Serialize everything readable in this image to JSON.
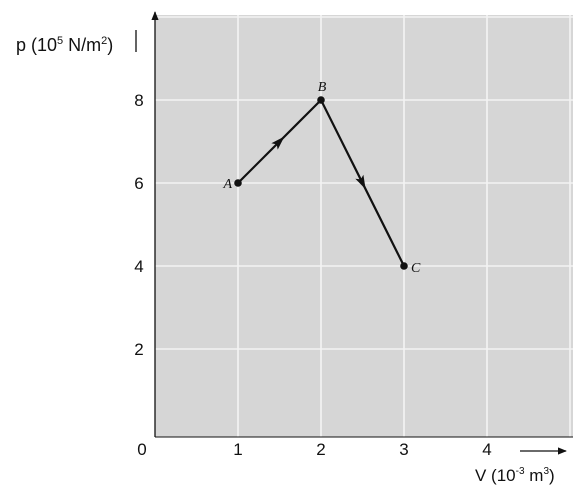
{
  "chart_data": {
    "type": "line",
    "ylabel_html": [
      "p (10",
      "5",
      " N/m",
      "2",
      ")"
    ],
    "xlabel_html": [
      "V (10",
      "-3",
      " m",
      "3",
      ")"
    ],
    "origin_label": "0",
    "xlim": [
      0,
      5
    ],
    "ylim": [
      0,
      10
    ],
    "x_ticks": [
      {
        "value": 1,
        "label": "1"
      },
      {
        "value": 2,
        "label": "2"
      },
      {
        "value": 3,
        "label": "3"
      },
      {
        "value": 4,
        "label": "4"
      }
    ],
    "y_ticks": [
      {
        "value": 2,
        "label": "2"
      },
      {
        "value": 4,
        "label": "4"
      },
      {
        "value": 6,
        "label": "6"
      },
      {
        "value": 8,
        "label": "8"
      }
    ],
    "grid": true,
    "points": [
      {
        "label": "A",
        "x": 1,
        "y": 6,
        "label_side": "left"
      },
      {
        "label": "B",
        "x": 2,
        "y": 8,
        "label_side": "above"
      },
      {
        "label": "C",
        "x": 3,
        "y": 4,
        "label_side": "right"
      }
    ],
    "segments": [
      {
        "from": "A",
        "to": "B",
        "arrow": true
      },
      {
        "from": "B",
        "to": "C",
        "arrow": true
      }
    ],
    "colors": {
      "plot_background": "#d6d6d6",
      "grid": "#f4f4f4",
      "line": "#111111",
      "axis": "#111111"
    }
  }
}
